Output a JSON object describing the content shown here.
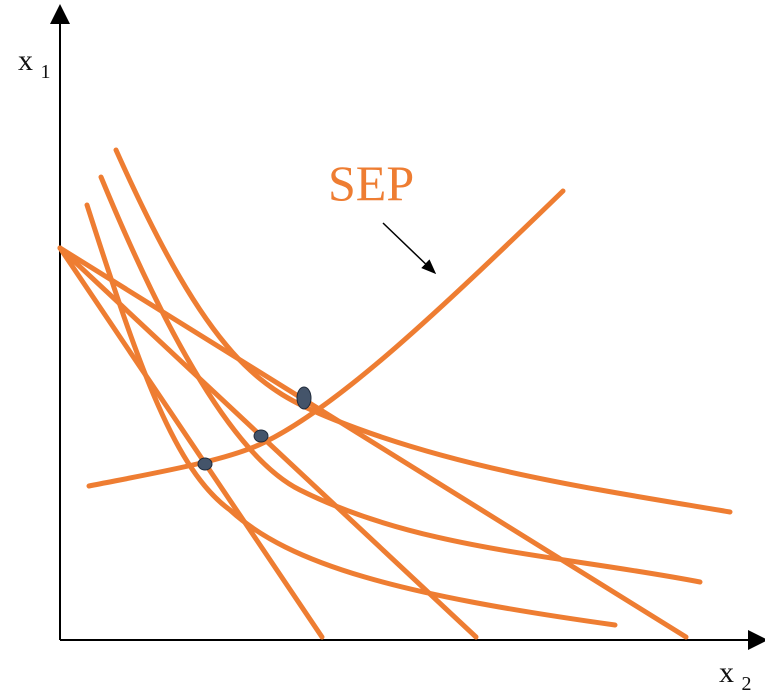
{
  "axes": {
    "y_label": {
      "main": "x",
      "sub": "1"
    },
    "x_label": {
      "main": "x",
      "sub": "2"
    }
  },
  "curve_label": "SEP",
  "colors": {
    "curve": "#ee7d32",
    "axis": "#000000",
    "point": "#44546a",
    "arrow": "#000000"
  },
  "elements": {
    "budget_lines": 3,
    "indifference_curves": 3,
    "tangency_points": 3,
    "expansion_path": "SEP"
  }
}
